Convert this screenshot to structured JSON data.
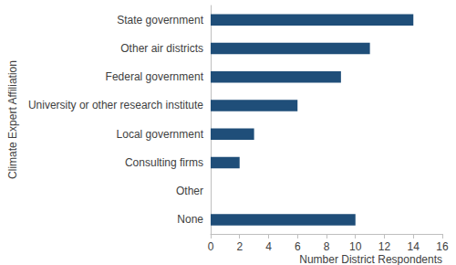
{
  "chart_data": {
    "type": "bar",
    "orientation": "horizontal",
    "xlabel": "Number District Respondents",
    "ylabel": "Climate Expert Affiliation",
    "categories": [
      "State government",
      "Other air districts",
      "Federal government",
      "University or other research institute",
      "Local government",
      "Consulting firms",
      "Other",
      "None"
    ],
    "values": [
      14,
      11,
      9,
      6,
      3,
      2,
      0,
      10
    ],
    "color": "#1f4e79",
    "xlim": [
      0,
      16
    ],
    "xticks": [
      0,
      2,
      4,
      6,
      8,
      10,
      12,
      14,
      16
    ],
    "grid": false
  }
}
